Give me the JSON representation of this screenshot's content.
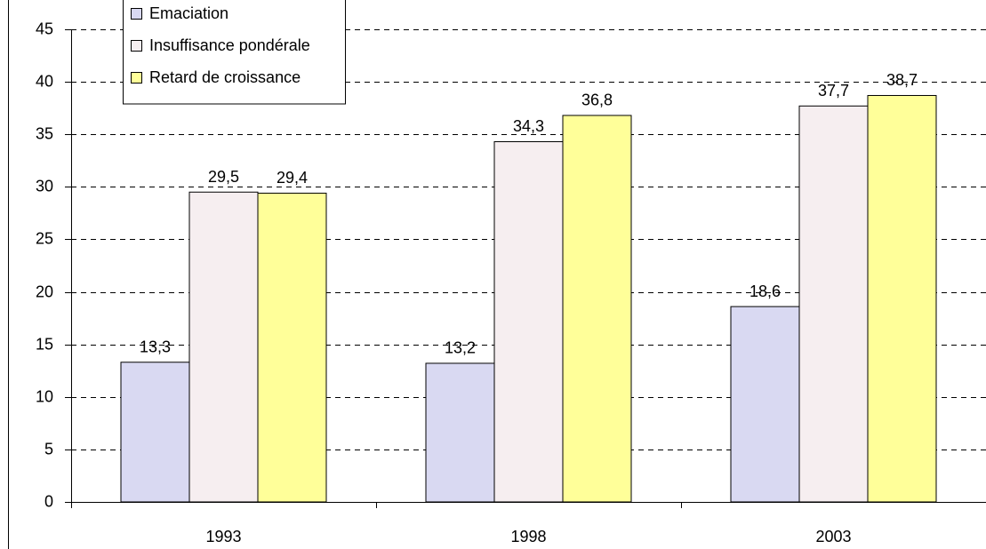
{
  "chart_data": {
    "type": "bar",
    "categories": [
      "1993",
      "1998",
      "2003"
    ],
    "series": [
      {
        "name": "Emaciation",
        "color": "#d9d9f2",
        "values": [
          13.3,
          13.2,
          18.6
        ],
        "value_labels": [
          "13,3",
          "13,2",
          "18,6"
        ]
      },
      {
        "name": "Insuffisance pondérale",
        "color": "#f6eef0",
        "values": [
          29.5,
          34.3,
          37.7
        ],
        "value_labels": [
          "29,5",
          "34,3",
          "37,7"
        ]
      },
      {
        "name": "Retard de croissance",
        "color": "#ffff99",
        "values": [
          29.4,
          36.8,
          38.7
        ],
        "value_labels": [
          "29,4",
          "36,8",
          "38,7"
        ]
      }
    ],
    "ylim": [
      0,
      45
    ],
    "yticks": [
      0,
      5,
      10,
      15,
      20,
      25,
      30,
      35,
      40,
      45
    ],
    "grid": true,
    "legend": "top-left"
  }
}
